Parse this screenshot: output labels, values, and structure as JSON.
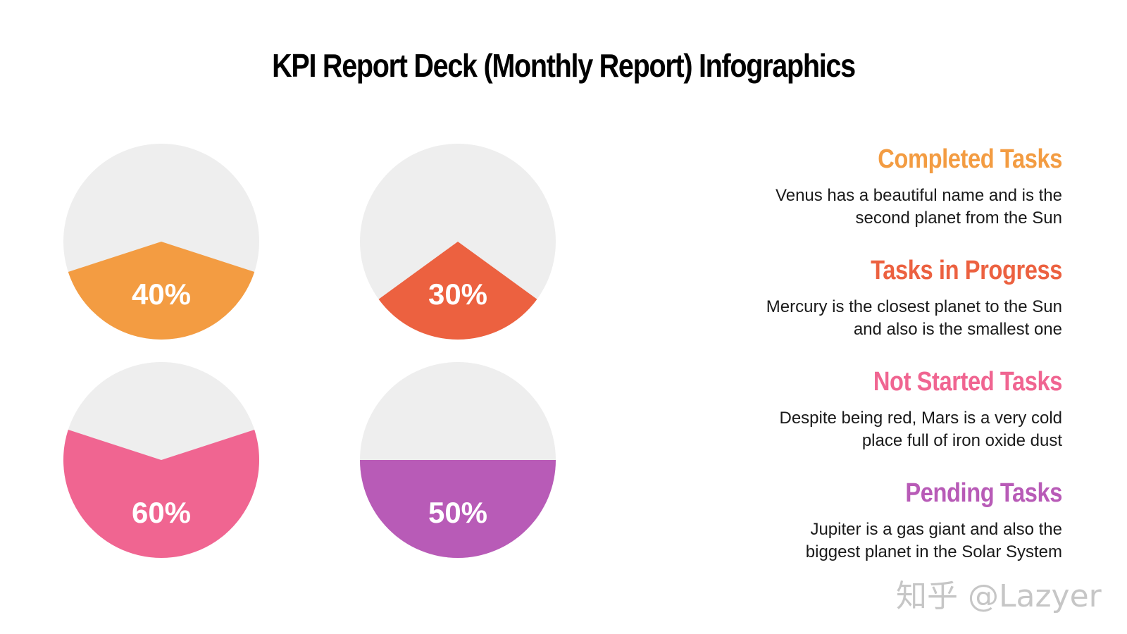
{
  "title": "KPI Report Deck (Monthly Report) Infographics",
  "colors": {
    "background": "#ffffff",
    "track": "#eeeeee",
    "completed": "#f39c42",
    "in_progress": "#ec6140",
    "not_started": "#f06591",
    "pending": "#b85bb7"
  },
  "items": [
    {
      "heading": "Completed Tasks",
      "line1": "Venus has a beautiful name and is the",
      "line2": "second planet from the Sun"
    },
    {
      "heading": "Tasks in Progress",
      "line1": "Mercury is the closest planet to the Sun",
      "line2": "and also is the smallest one"
    },
    {
      "heading": "Not Started Tasks",
      "line1": "Despite being red, Mars is a very cold",
      "line2": "place full of iron oxide dust"
    },
    {
      "heading": "Pending Tasks",
      "line1": "Jupiter is a gas giant and also the",
      "line2": "biggest planet in the Solar System"
    }
  ],
  "chart_data": [
    {
      "type": "pie",
      "values": [
        40,
        60
      ],
      "label": "40%"
    },
    {
      "type": "pie",
      "values": [
        30,
        70
      ],
      "label": "30%"
    },
    {
      "type": "pie",
      "values": [
        60,
        40
      ],
      "label": "60%"
    },
    {
      "type": "pie",
      "values": [
        50,
        50
      ],
      "label": "50%"
    }
  ],
  "watermark": "知乎 @Lazyer"
}
